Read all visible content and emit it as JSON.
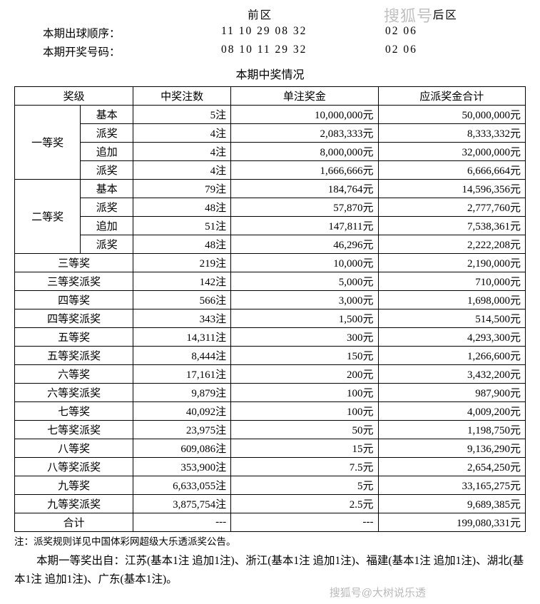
{
  "watermark": "搜狐号",
  "watermark2": "搜狐号@大树说乐透",
  "header": {
    "front_label": "前区",
    "back_label": "后区",
    "row1": {
      "label": "本期出球顺序：",
      "front": "11 10 29 08 32",
      "back": "02 06"
    },
    "row2": {
      "label": "本期开奖号码：",
      "front": "08 10 11 29 32",
      "back": "02 06"
    }
  },
  "section_title": "本期中奖情况",
  "columns": {
    "level": "奖级",
    "count": "中奖注数",
    "unit": "单注奖金",
    "total": "应派奖金合计"
  },
  "units": {
    "bets": "注",
    "yuan": "元"
  },
  "grouped": [
    {
      "name": "一等奖",
      "sub": [
        {
          "name": "基本",
          "count": "5",
          "unit": "10,000,000",
          "total": "50,000,000"
        },
        {
          "name": "派奖",
          "count": "4",
          "unit": "2,083,333",
          "total": "8,333,332"
        },
        {
          "name": "追加",
          "count": "4",
          "unit": "8,000,000",
          "total": "32,000,000"
        },
        {
          "name": "派奖",
          "count": "4",
          "unit": "1,666,666",
          "total": "6,666,664"
        }
      ]
    },
    {
      "name": "二等奖",
      "sub": [
        {
          "name": "基本",
          "count": "79",
          "unit": "184,764",
          "total": "14,596,356"
        },
        {
          "name": "派奖",
          "count": "48",
          "unit": "57,870",
          "total": "2,777,760"
        },
        {
          "name": "追加",
          "count": "51",
          "unit": "147,811",
          "total": "7,538,361"
        },
        {
          "name": "派奖",
          "count": "48",
          "unit": "46,296",
          "total": "2,222,208"
        }
      ]
    }
  ],
  "simple": [
    {
      "name": "三等奖",
      "count": "219",
      "unit": "10,000",
      "total": "2,190,000"
    },
    {
      "name": "三等奖派奖",
      "count": "142",
      "unit": "5,000",
      "total": "710,000"
    },
    {
      "name": "四等奖",
      "count": "566",
      "unit": "3,000",
      "total": "1,698,000"
    },
    {
      "name": "四等奖派奖",
      "count": "343",
      "unit": "1,500",
      "total": "514,500"
    },
    {
      "name": "五等奖",
      "count": "14,311",
      "unit": "300",
      "total": "4,293,300"
    },
    {
      "name": "五等奖派奖",
      "count": "8,444",
      "unit": "150",
      "total": "1,266,600"
    },
    {
      "name": "六等奖",
      "count": "17,161",
      "unit": "200",
      "total": "3,432,200"
    },
    {
      "name": "六等奖派奖",
      "count": "9,879",
      "unit": "100",
      "total": "987,900"
    },
    {
      "name": "七等奖",
      "count": "40,092",
      "unit": "100",
      "total": "4,009,200"
    },
    {
      "name": "七等奖派奖",
      "count": "23,975",
      "unit": "50",
      "total": "1,198,750"
    },
    {
      "name": "八等奖",
      "count": "609,086",
      "unit": "15",
      "total": "9,136,290"
    },
    {
      "name": "八等奖派奖",
      "count": "353,900",
      "unit": "7.5",
      "total": "2,654,250"
    },
    {
      "name": "九等奖",
      "count": "6,633,055",
      "unit": "5",
      "total": "33,165,275"
    },
    {
      "name": "九等奖派奖",
      "count": "3,875,754",
      "unit": "2.5",
      "total": "9,689,385"
    }
  ],
  "sum": {
    "name": "合计",
    "count": "---",
    "unit": "---",
    "total": "199,080,331"
  },
  "note": "注：派奖规则详见中国体彩网超级大乐透派奖公告。",
  "foot": "本期一等奖出自：江苏(基本1注 追加1注)、浙江(基本1注 追加1注)、福建(基本1注 追加1注)、湖北(基本1注 追加1注)、广东(基本1注)。"
}
